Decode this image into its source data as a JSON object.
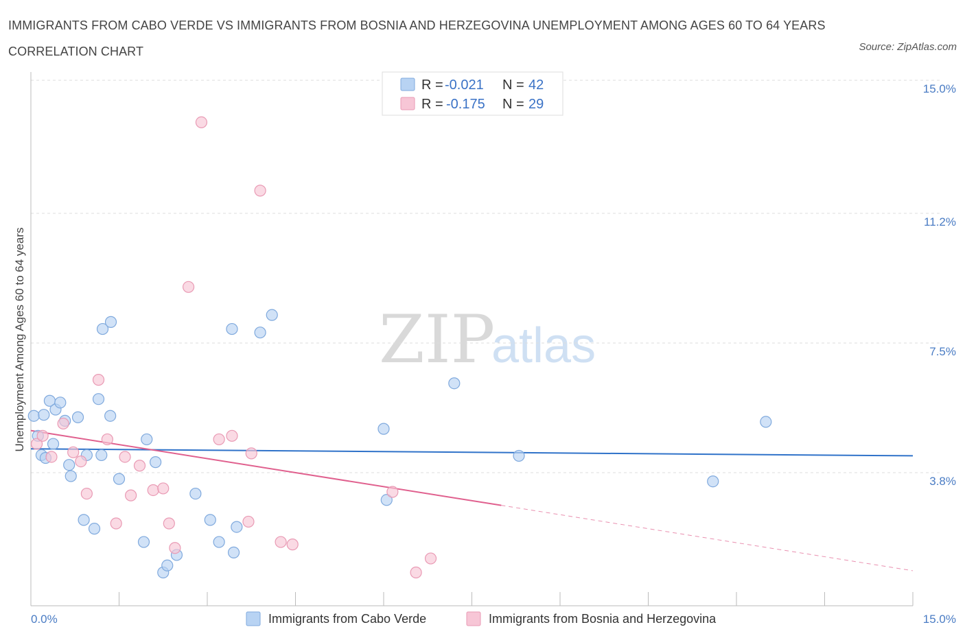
{
  "header": {
    "title": "IMMIGRANTS FROM CABO VERDE VS IMMIGRANTS FROM BOSNIA AND HERZEGOVINA UNEMPLOYMENT AMONG AGES 60 TO 64 YEARS CORRELATION CHART",
    "source": "Source: ZipAtlas.com"
  },
  "watermark": {
    "zip": "ZIP",
    "atlas": "atlas"
  },
  "legend": {
    "r_label": "R =",
    "n_label": "N =",
    "rows": [
      {
        "r": "-0.021",
        "n": "42"
      },
      {
        "r": "-0.175",
        "n": "29"
      }
    ]
  },
  "colors": {
    "blue_fill": "#b8d3f3",
    "blue_stroke": "#7fa9dd",
    "blue_line": "#2f72c9",
    "pink_fill": "#f7c6d6",
    "pink_stroke": "#e99ab4",
    "pink_line": "#e0608e",
    "tick_text": "#4a7cc4",
    "grid": "#dddddd"
  },
  "chart_data": {
    "type": "scatter",
    "title": "IMMIGRANTS FROM CABO VERDE VS IMMIGRANTS FROM BOSNIA AND HERZEGOVINA UNEMPLOYMENT AMONG AGES 60 TO 64 YEARS CORRELATION CHART",
    "xlabel": "",
    "ylabel": "Unemployment Among Ages 60 to 64 years",
    "xlim": [
      0,
      15
    ],
    "ylim": [
      0,
      15
    ],
    "x_tick_labels": [
      "0.0%",
      "15.0%"
    ],
    "y_ticks": [
      {
        "value": 3.8,
        "label": "3.8%"
      },
      {
        "value": 7.5,
        "label": "7.5%"
      },
      {
        "value": 11.2,
        "label": "11.2%"
      },
      {
        "value": 15.0,
        "label": "15.0%"
      }
    ],
    "grid": "horizontal-dashed",
    "legend_position": "top-center",
    "series": [
      {
        "name": "Immigrants from Cabo Verde",
        "color": "#b8d3f3",
        "r": -0.021,
        "n": 42,
        "trend": {
          "x": [
            0,
            15
          ],
          "y": [
            4.48,
            4.28
          ],
          "solid_until": 15
        },
        "points": [
          [
            0.05,
            5.42
          ],
          [
            0.12,
            4.85
          ],
          [
            0.18,
            4.3
          ],
          [
            0.22,
            5.45
          ],
          [
            0.25,
            4.22
          ],
          [
            0.32,
            5.85
          ],
          [
            0.38,
            4.62
          ],
          [
            0.42,
            5.6
          ],
          [
            0.5,
            5.8
          ],
          [
            0.58,
            5.28
          ],
          [
            0.65,
            4.02
          ],
          [
            0.68,
            3.7
          ],
          [
            0.8,
            5.38
          ],
          [
            0.9,
            2.45
          ],
          [
            0.95,
            4.3
          ],
          [
            1.08,
            2.2
          ],
          [
            1.15,
            5.9
          ],
          [
            1.2,
            4.3
          ],
          [
            1.22,
            7.9
          ],
          [
            1.35,
            5.42
          ],
          [
            1.36,
            8.1
          ],
          [
            1.5,
            3.62
          ],
          [
            1.92,
            1.82
          ],
          [
            1.97,
            4.75
          ],
          [
            2.12,
            4.1
          ],
          [
            2.25,
            0.95
          ],
          [
            2.32,
            1.15
          ],
          [
            2.48,
            1.45
          ],
          [
            2.8,
            3.2
          ],
          [
            3.05,
            2.45
          ],
          [
            3.2,
            1.82
          ],
          [
            3.42,
            7.9
          ],
          [
            3.45,
            1.52
          ],
          [
            3.5,
            2.25
          ],
          [
            3.9,
            7.8
          ],
          [
            4.1,
            8.3
          ],
          [
            6.0,
            5.05
          ],
          [
            6.05,
            3.02
          ],
          [
            7.2,
            6.35
          ],
          [
            8.3,
            4.28
          ],
          [
            11.6,
            3.55
          ],
          [
            12.5,
            5.25
          ]
        ]
      },
      {
        "name": "Immigrants from Bosnia and Herzegovina",
        "color": "#f7c6d6",
        "r": -0.175,
        "n": 29,
        "trend": {
          "x": [
            0,
            15
          ],
          "y": [
            5.0,
            1.0
          ],
          "solid_until": 8.0
        },
        "points": [
          [
            0.1,
            4.62
          ],
          [
            0.2,
            4.85
          ],
          [
            0.35,
            4.25
          ],
          [
            0.55,
            5.2
          ],
          [
            0.72,
            4.38
          ],
          [
            0.85,
            4.12
          ],
          [
            0.95,
            3.2
          ],
          [
            1.15,
            6.45
          ],
          [
            1.3,
            4.75
          ],
          [
            1.45,
            2.35
          ],
          [
            1.6,
            4.25
          ],
          [
            1.7,
            3.15
          ],
          [
            1.85,
            4.0
          ],
          [
            2.08,
            3.3
          ],
          [
            2.25,
            3.35
          ],
          [
            2.35,
            2.35
          ],
          [
            2.45,
            1.65
          ],
          [
            2.68,
            9.1
          ],
          [
            2.9,
            13.8
          ],
          [
            3.2,
            4.75
          ],
          [
            3.42,
            4.85
          ],
          [
            3.7,
            2.4
          ],
          [
            3.75,
            4.35
          ],
          [
            3.9,
            11.85
          ],
          [
            4.25,
            1.82
          ],
          [
            4.45,
            1.75
          ],
          [
            6.15,
            3.25
          ],
          [
            6.55,
            0.95
          ],
          [
            6.8,
            1.35
          ]
        ]
      }
    ]
  },
  "bottom_legend": {
    "items": [
      {
        "label": "Immigrants from Cabo Verde"
      },
      {
        "label": "Immigrants from Bosnia and Herzegovina"
      }
    ]
  }
}
